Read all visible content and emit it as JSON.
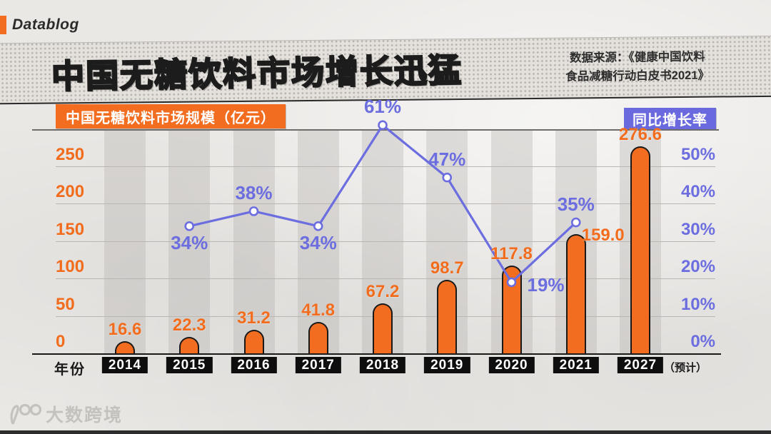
{
  "brand": {
    "name": "Datablog"
  },
  "title": {
    "main": "中国无糖饮料市场",
    "highlight": "增长迅猛"
  },
  "source": {
    "line1": "数据来源：《健康中国饮料",
    "line2": "食品减糖行动白皮书2021》"
  },
  "legend": {
    "bars": "中国无糖饮料市场规模（亿元）",
    "line": "同比增长率"
  },
  "axis": {
    "x_title": "年份",
    "forecast_note": "（预计）"
  },
  "watermark": {
    "text": "大数跨境"
  },
  "colors": {
    "orange": "#f26d1f",
    "purple": "#6c6ee0",
    "purple_box": "#6a6ade",
    "black": "#191919",
    "paper": "#eae8e5",
    "stripe": "rgba(175,172,168,0.32)"
  },
  "chart_data": {
    "type": "bar+line",
    "title": "中国无糖饮料市场增长迅猛",
    "categories": [
      "2014",
      "2015",
      "2016",
      "2017",
      "2018",
      "2019",
      "2020",
      "2021",
      "2027"
    ],
    "series": [
      {
        "name": "中国无糖饮料市场规模（亿元）",
        "type": "bar",
        "values": [
          16.6,
          22.3,
          31.2,
          41.8,
          67.2,
          98.7,
          117.8,
          159.0,
          276.6
        ],
        "labels": [
          "16.6",
          "22.3",
          "31.2",
          "41.8",
          "67.2",
          "98.7",
          "117.8",
          "159.0",
          "276.6"
        ]
      },
      {
        "name": "同比增长率",
        "type": "line",
        "unit": "%",
        "values": [
          null,
          34,
          38,
          34,
          61,
          47,
          19,
          35,
          null
        ],
        "labels": [
          null,
          "34%",
          "38%",
          "34%",
          "61%",
          "47%",
          "19%",
          "35%",
          null
        ]
      }
    ],
    "left_axis": {
      "label": "亿元",
      "min": 0,
      "max": 300,
      "ticks": [
        0,
        50,
        100,
        150,
        200,
        250
      ],
      "tick_labels": [
        "0",
        "50",
        "100",
        "150",
        "200",
        "250"
      ]
    },
    "right_axis": {
      "label": "同比增长率",
      "min": 0,
      "max": 60,
      "ticks": [
        0,
        10,
        20,
        30,
        40,
        50
      ],
      "tick_labels": [
        "0%",
        "10%",
        "20%",
        "30%",
        "40%",
        "50%"
      ]
    },
    "grid": true,
    "legend_position": "top"
  }
}
